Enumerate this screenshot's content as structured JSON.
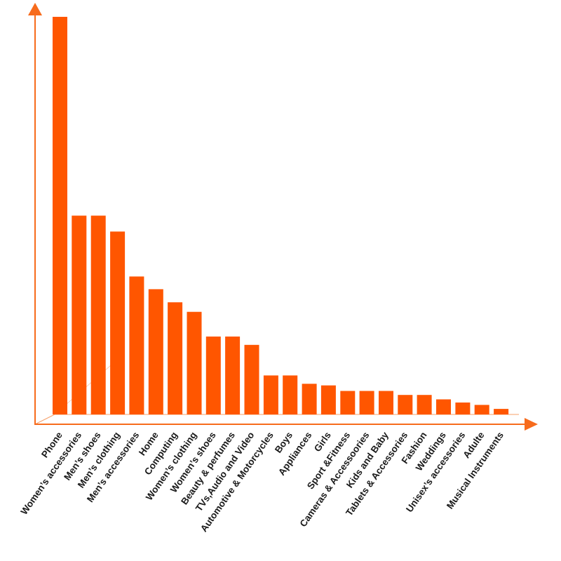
{
  "chart_data": {
    "type": "bar",
    "categories": [
      "Phone",
      "Women’s accessories",
      "Men’s shoes",
      "Men’s clothing",
      "Men’s accessories",
      "Home",
      "Computing",
      "Women’s clothing",
      "Women’s shoes",
      "Beauty & perfumes",
      "TVs,Audio and Video",
      "Automotive & Motorcycles",
      "Boys",
      "Appliances",
      "Girls",
      "Sport &Fitness",
      "Cameras & Accessoories",
      "Kids and Baby",
      "Tablets & Accessories",
      "Fashion",
      "Weddings",
      "Unisex’s accessories",
      "Adulte",
      "Musical Instruments"
    ],
    "values": [
      100,
      50,
      50,
      46,
      34.7,
      31.5,
      28.2,
      25.8,
      19.6,
      19.6,
      17.5,
      9.8,
      9.8,
      7.7,
      7.3,
      5.9,
      5.9,
      5.9,
      4.9,
      4.9,
      3.8,
      3.0,
      2.4,
      1.4
    ],
    "ylim": [
      0,
      100
    ],
    "title": "",
    "xlabel": "",
    "ylabel": "",
    "grid": false,
    "legend": "none",
    "colors": {
      "bar": "#ff5600",
      "axis": "#f76b1c",
      "label": "#1a1a1a"
    }
  }
}
